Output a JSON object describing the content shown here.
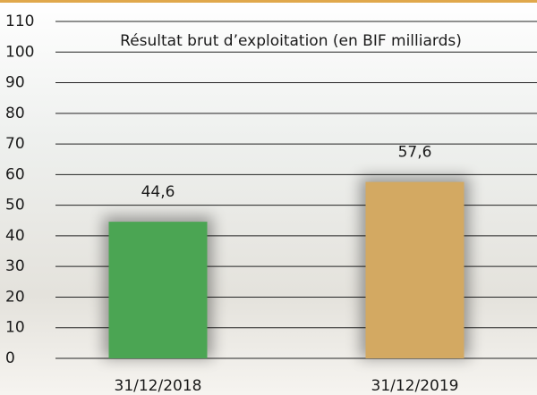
{
  "chart_data": {
    "type": "bar",
    "title": "Résultat brut d’exploitation (en BIF milliards)",
    "categories": [
      "31/12/2018",
      "31/12/2019"
    ],
    "values": [
      44.6,
      57.6
    ],
    "value_labels": [
      "44,6",
      "57,6"
    ],
    "colors": [
      "#4ba553",
      "#d3a962"
    ],
    "ylim": [
      0,
      110
    ],
    "yticks": [
      0,
      10,
      20,
      30,
      40,
      50,
      60,
      70,
      80,
      90,
      100,
      110
    ],
    "grid": true
  }
}
